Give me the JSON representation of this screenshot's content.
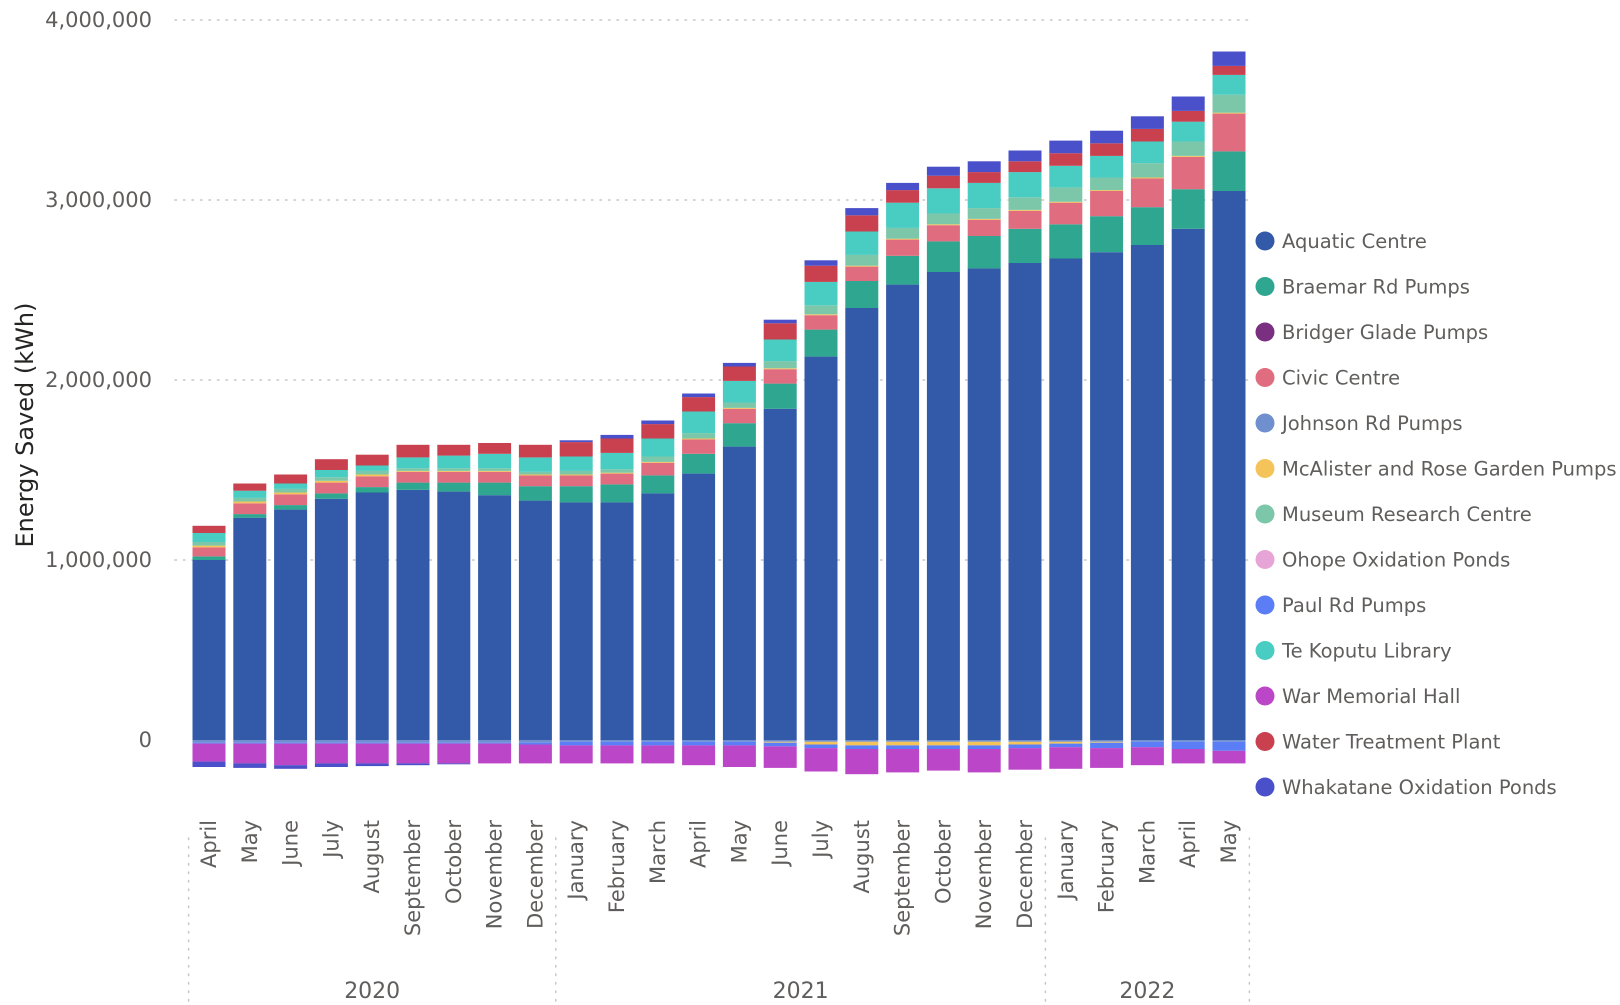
{
  "chart_data": {
    "type": "bar",
    "stacked": true,
    "ylabel": "Energy Saved (kWh)",
    "xlabel": "",
    "ylim": [
      -200000,
      4000000
    ],
    "yticks": [
      0,
      1000000,
      2000000,
      3000000,
      4000000
    ],
    "ytick_labels": [
      "0",
      "1,000,000",
      "2,000,000",
      "3,000,000",
      "4,000,000"
    ],
    "grid": true,
    "legend_position": "right",
    "categories": [
      "April",
      "May",
      "June",
      "July",
      "August",
      "September",
      "October",
      "November",
      "December",
      "January",
      "February",
      "March",
      "April",
      "May",
      "June",
      "July",
      "August",
      "September",
      "October",
      "November",
      "December",
      "January",
      "February",
      "March",
      "April",
      "May"
    ],
    "years": [
      {
        "label": "2020",
        "start": 0,
        "end": 8
      },
      {
        "label": "2021",
        "start": 9,
        "end": 20
      },
      {
        "label": "2022",
        "start": 21,
        "end": 25
      }
    ],
    "series": [
      {
        "name": "Aquatic Centre",
        "color": "#3359a9",
        "values": [
          1000000,
          1235000,
          1280000,
          1340000,
          1375000,
          1390000,
          1380000,
          1360000,
          1330000,
          1320000,
          1320000,
          1370000,
          1480000,
          1630000,
          1840000,
          2130000,
          2400000,
          2530000,
          2600000,
          2620000,
          2650000,
          2675000,
          2710000,
          2750000,
          2840000,
          3050000
        ]
      },
      {
        "label_note": "",
        "name": "Braemar Rd Pumps",
        "color": "#2ea690",
        "values": [
          20000,
          20000,
          25000,
          30000,
          30000,
          40000,
          50000,
          70000,
          80000,
          90000,
          100000,
          100000,
          110000,
          130000,
          140000,
          150000,
          150000,
          160000,
          170000,
          180000,
          190000,
          190000,
          200000,
          210000,
          220000,
          220000
        ]
      },
      {
        "name": "Bridger Glade Pumps",
        "color": "#7a2f80",
        "values": [
          0,
          0,
          0,
          0,
          0,
          0,
          0,
          0,
          0,
          0,
          0,
          0,
          0,
          0,
          0,
          0,
          0,
          0,
          0,
          0,
          0,
          0,
          0,
          0,
          0,
          0
        ]
      },
      {
        "name": "Civic Centre",
        "color": "#e06c7f",
        "values": [
          50000,
          60000,
          60000,
          60000,
          60000,
          60000,
          60000,
          60000,
          60000,
          60000,
          60000,
          70000,
          80000,
          80000,
          80000,
          80000,
          80000,
          90000,
          90000,
          90000,
          100000,
          120000,
          140000,
          160000,
          180000,
          210000
        ]
      },
      {
        "name": "Johnson Rd Pumps",
        "color": "#6f8fcf",
        "values": [
          0,
          0,
          0,
          0,
          0,
          0,
          0,
          0,
          0,
          0,
          0,
          0,
          0,
          0,
          0,
          0,
          0,
          0,
          0,
          0,
          0,
          0,
          0,
          0,
          0,
          0
        ]
      },
      {
        "name": "McAlister and Rose Garden Pumps",
        "color": "#f4c45b",
        "values": [
          10000,
          10000,
          10000,
          10000,
          10000,
          5000,
          5000,
          5000,
          5000,
          5000,
          5000,
          5000,
          5000,
          5000,
          5000,
          5000,
          5000,
          5000,
          5000,
          5000,
          5000,
          5000,
          5000,
          5000,
          5000,
          5000
        ]
      },
      {
        "name": "Museum Research Centre",
        "color": "#7cc7a9",
        "values": [
          20000,
          20000,
          20000,
          20000,
          20000,
          15000,
          15000,
          15000,
          15000,
          20000,
          20000,
          30000,
          30000,
          30000,
          40000,
          50000,
          60000,
          60000,
          60000,
          60000,
          70000,
          80000,
          70000,
          80000,
          80000,
          100000
        ]
      },
      {
        "name": "Ohope Oxidation Ponds",
        "color": "#e7a4d6",
        "values": [
          0,
          0,
          0,
          0,
          0,
          0,
          0,
          0,
          0,
          0,
          0,
          0,
          0,
          0,
          0,
          0,
          0,
          0,
          0,
          0,
          0,
          0,
          0,
          0,
          0,
          0
        ]
      },
      {
        "name": "Paul Rd Pumps",
        "color": "#5b7ef7",
        "values": [
          0,
          0,
          0,
          0,
          0,
          0,
          0,
          0,
          0,
          0,
          0,
          0,
          0,
          0,
          0,
          0,
          0,
          0,
          0,
          0,
          0,
          0,
          0,
          0,
          0,
          0
        ]
      },
      {
        "name": "Te Koputu Library",
        "color": "#49ccc2",
        "values": [
          50000,
          40000,
          30000,
          40000,
          30000,
          60000,
          70000,
          80000,
          80000,
          80000,
          90000,
          100000,
          120000,
          120000,
          120000,
          130000,
          130000,
          140000,
          140000,
          140000,
          140000,
          120000,
          120000,
          120000,
          110000,
          110000
        ]
      },
      {
        "name": "War Memorial Hall",
        "color": "#bb47c8",
        "values": [
          0,
          0,
          0,
          0,
          0,
          0,
          0,
          0,
          0,
          0,
          0,
          0,
          0,
          0,
          0,
          0,
          0,
          0,
          0,
          0,
          0,
          0,
          0,
          0,
          0,
          0
        ]
      },
      {
        "name": "Water Treatment Plant",
        "color": "#c9414f",
        "values": [
          40000,
          40000,
          50000,
          60000,
          60000,
          70000,
          60000,
          60000,
          70000,
          80000,
          80000,
          80000,
          80000,
          80000,
          90000,
          90000,
          90000,
          70000,
          70000,
          60000,
          60000,
          70000,
          70000,
          70000,
          60000,
          50000
        ]
      },
      {
        "name": "Whakatane Oxidation Ponds",
        "color": "#4a50c9",
        "values": [
          0,
          0,
          0,
          0,
          0,
          0,
          0,
          0,
          0,
          10000,
          20000,
          20000,
          20000,
          20000,
          20000,
          30000,
          40000,
          40000,
          50000,
          60000,
          60000,
          70000,
          70000,
          70000,
          80000,
          80000
        ]
      }
    ],
    "negative_series": [
      {
        "name": "Johnson Rd Pumps",
        "color": "#6f8fcf",
        "values": [
          -15000,
          -15000,
          -15000,
          -15000,
          -15000,
          -15000,
          -15000,
          -15000,
          -15000,
          -10000,
          -10000,
          -10000,
          -10000,
          -10000,
          -10000,
          -10000,
          -10000,
          -10000,
          -10000,
          -10000,
          -10000,
          -10000,
          -10000,
          -10000,
          -10000,
          -10000
        ]
      },
      {
        "name": "McAlister and Rose Garden Pumps",
        "color": "#f4c45b",
        "values": [
          0,
          0,
          0,
          0,
          0,
          0,
          0,
          0,
          0,
          0,
          0,
          0,
          0,
          0,
          -5000,
          -15000,
          -20000,
          -20000,
          -20000,
          -20000,
          -15000,
          -10000,
          -5000,
          0,
          0,
          0
        ]
      },
      {
        "name": "Paul Rd Pumps",
        "color": "#5b7ef7",
        "values": [
          -5000,
          -5000,
          -5000,
          -5000,
          -5000,
          -5000,
          -5000,
          -5000,
          -10000,
          -20000,
          -20000,
          -20000,
          -20000,
          -20000,
          -20000,
          -20000,
          -20000,
          -20000,
          -20000,
          -20000,
          -20000,
          -20000,
          -30000,
          -30000,
          -40000,
          -50000
        ]
      },
      {
        "name": "War Memorial Hall",
        "color": "#bb47c8",
        "values": [
          -100000,
          -110000,
          -120000,
          -110000,
          -110000,
          -110000,
          -110000,
          -110000,
          -105000,
          -100000,
          -100000,
          -100000,
          -110000,
          -120000,
          -120000,
          -130000,
          -140000,
          -130000,
          -120000,
          -130000,
          -120000,
          -120000,
          -110000,
          -100000,
          -80000,
          -70000
        ]
      },
      {
        "name": "Whakatane Oxidation Ponds",
        "color": "#4a50c9",
        "values": [
          -30000,
          -25000,
          -20000,
          -20000,
          -15000,
          -10000,
          -5000,
          0,
          0,
          0,
          0,
          0,
          0,
          0,
          0,
          0,
          0,
          0,
          0,
          0,
          0,
          0,
          0,
          0,
          0,
          0
        ]
      }
    ]
  }
}
